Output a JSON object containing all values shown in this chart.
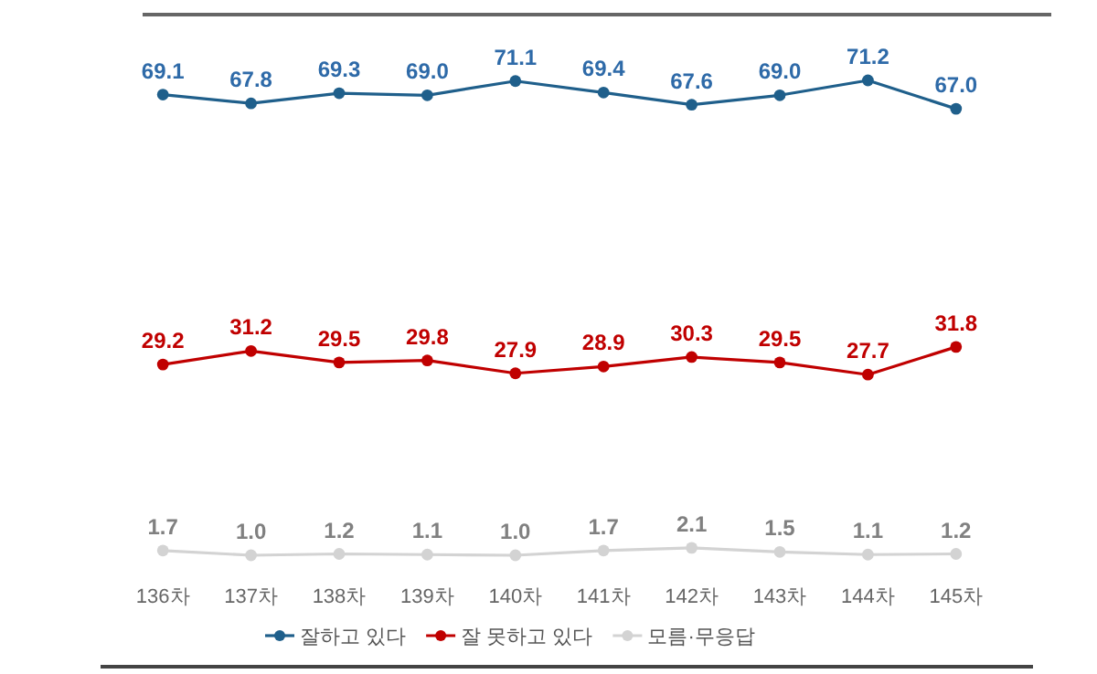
{
  "chart_data": {
    "type": "line",
    "categories": [
      "136차",
      "137차",
      "138차",
      "139차",
      "140차",
      "141차",
      "142차",
      "143차",
      "144차",
      "145차"
    ],
    "series": [
      {
        "name": "잘하고 있다",
        "color": "#1f5f8b",
        "values": [
          69.1,
          67.8,
          69.3,
          69.0,
          71.1,
          69.4,
          67.6,
          69.0,
          71.2,
          67.0
        ],
        "value_labels": [
          "69.1",
          "67.8",
          "69.3",
          "69.0",
          "71.1",
          "69.4",
          "67.6",
          "69.0",
          "71.2",
          "67.0"
        ]
      },
      {
        "name": "잘 못하고 있다",
        "color": "#c00000",
        "values": [
          29.2,
          31.2,
          29.5,
          29.8,
          27.9,
          28.9,
          30.3,
          29.5,
          27.7,
          31.8
        ],
        "value_labels": [
          "29.2",
          "31.2",
          "29.5",
          "29.8",
          "27.9",
          "28.9",
          "30.3",
          "29.5",
          "27.7",
          "31.8"
        ]
      },
      {
        "name": "모름·무응답",
        "color": "#d3d3d3",
        "values": [
          1.7,
          1.0,
          1.2,
          1.1,
          1.0,
          1.7,
          2.1,
          1.5,
          1.1,
          1.2
        ],
        "value_labels": [
          "1.7",
          "1.0",
          "1.2",
          "1.1",
          "1.0",
          "1.7",
          "2.1",
          "1.5",
          "1.1",
          "1.2"
        ]
      }
    ],
    "marker": "circle",
    "line_style": "solid",
    "legend": "bottom",
    "tick_labels": "x"
  }
}
